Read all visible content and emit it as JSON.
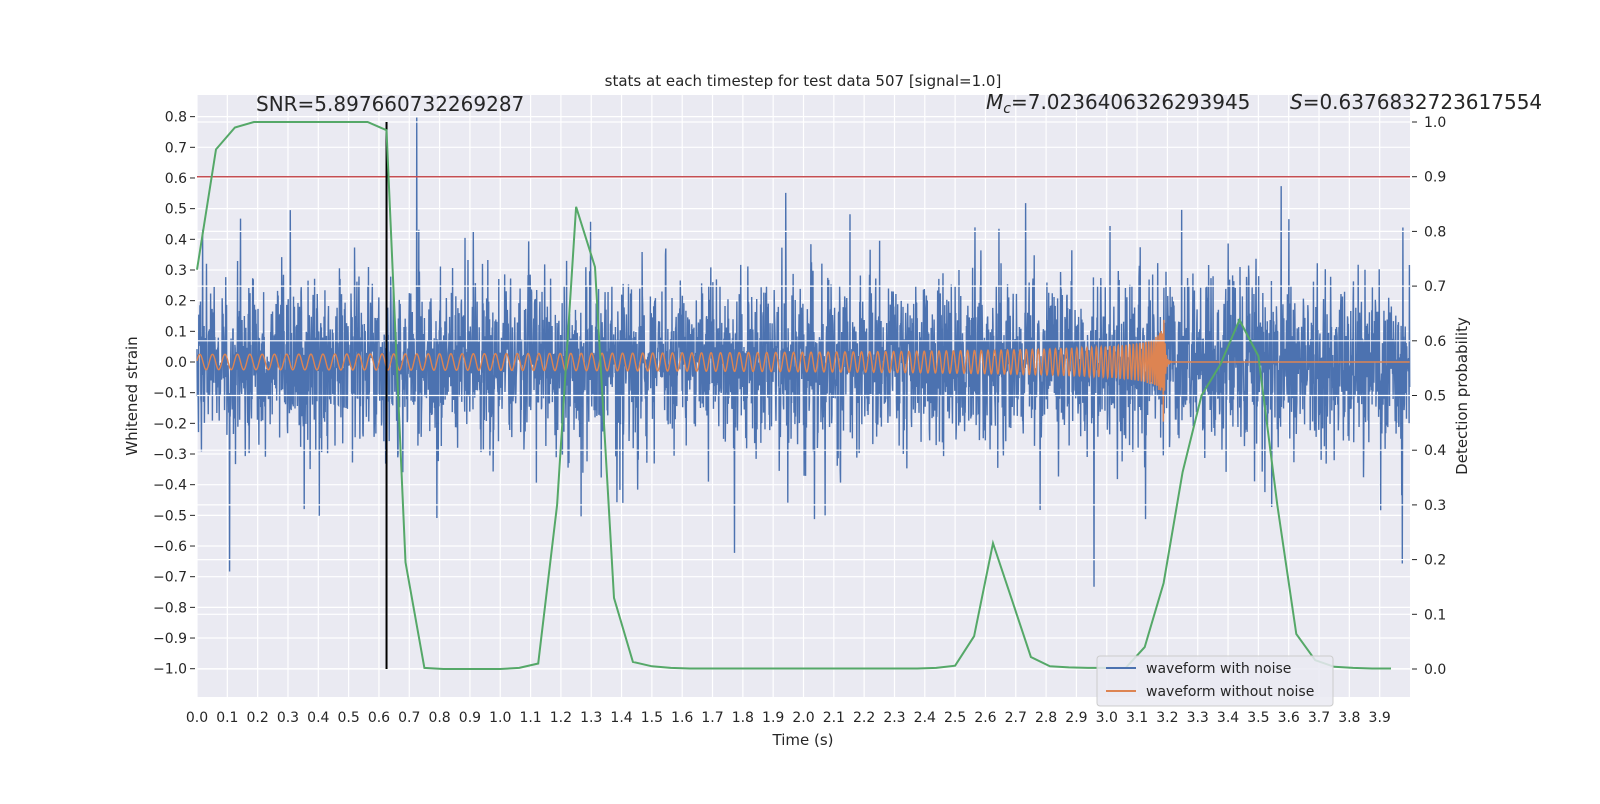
{
  "chart_data": {
    "type": "line",
    "title": "stats at each timestep for test data 507 [signal=1.0]",
    "xlabel": "Time (s)",
    "ylabel": "Whitened strain",
    "ylabel_right": "Detection probability",
    "xlim": [
      0.0,
      4.0
    ],
    "ylim": [
      -1.09,
      0.87
    ],
    "ylim_right": [
      -0.05,
      1.05
    ],
    "grid": true,
    "xticks": [
      "0.0",
      "0.1",
      "0.2",
      "0.3",
      "0.4",
      "0.5",
      "0.6",
      "0.7",
      "0.8",
      "0.9",
      "1.0",
      "1.1",
      "1.2",
      "1.3",
      "1.4",
      "1.5",
      "1.6",
      "1.7",
      "1.8",
      "1.9",
      "2.0",
      "2.1",
      "2.2",
      "2.3",
      "2.4",
      "2.5",
      "2.6",
      "2.7",
      "2.8",
      "2.9",
      "3.0",
      "3.1",
      "3.2",
      "3.3",
      "3.4",
      "3.5",
      "3.6",
      "3.7",
      "3.8",
      "3.9"
    ],
    "yticks": [
      "0.8",
      "0.7",
      "0.6",
      "0.5",
      "0.4",
      "0.3",
      "0.2",
      "0.1",
      "0.0",
      "−0.1",
      "−0.2",
      "−0.3",
      "−0.4",
      "−0.5",
      "−0.6",
      "−0.7",
      "−0.8",
      "−0.9",
      "−1.0"
    ],
    "yticks_right": [
      "1.0",
      "0.9",
      "0.8",
      "0.7",
      "0.6",
      "0.5",
      "0.4",
      "0.3",
      "0.2",
      "0.1",
      "0.0"
    ],
    "annotations": {
      "snr": "SNR=5.897660732269287",
      "mc_symbol": "M",
      "mc_sub": "c",
      "mc_value": "=7.0236406326293945",
      "s_symbol": "S",
      "s_value": "=0.6376832723617554"
    },
    "legend": {
      "placement": "lower-right",
      "entries": [
        "waveform with noise",
        "waveform without noise"
      ]
    },
    "series": [
      {
        "name": "waveform with noise",
        "axis": "left",
        "color": "#4c72b0",
        "sample_rate_hz": 1024,
        "noise_std": 0.13,
        "max_abs": 1.0
      },
      {
        "name": "waveform without noise",
        "axis": "left",
        "color": "#dd8452",
        "f_start_hz": 24,
        "coalescence_time_s": 3.19,
        "amp_start": 0.025,
        "amp_peak": 0.17
      },
      {
        "name": "detection probability",
        "axis": "right",
        "color": "#55a868",
        "x_step": 0.0625,
        "values": [
          0.73,
          0.95,
          0.99,
          1.0,
          1.0,
          1.0,
          1.0,
          1.0,
          1.0,
          1.0,
          0.985,
          0.195,
          0.002,
          0.0,
          0.0,
          0.0,
          0.0,
          0.002,
          0.01,
          0.3,
          0.845,
          0.735,
          0.13,
          0.013,
          0.005,
          0.002,
          0.001,
          0.001,
          0.001,
          0.001,
          0.001,
          0.001,
          0.001,
          0.001,
          0.001,
          0.001,
          0.001,
          0.001,
          0.001,
          0.002,
          0.006,
          0.06,
          0.23,
          0.126,
          0.022,
          0.005,
          0.003,
          0.002,
          0.002,
          0.002,
          0.04,
          0.157,
          0.36,
          0.5,
          0.557,
          0.638,
          0.572,
          0.3,
          0.064,
          0.016,
          0.004,
          0.002,
          0.001,
          0.001
        ]
      }
    ],
    "threshold": {
      "axis": "right",
      "value": 0.9,
      "color": "#c44e52"
    },
    "marker_time": {
      "x": 0.625,
      "color": "#000000"
    }
  }
}
